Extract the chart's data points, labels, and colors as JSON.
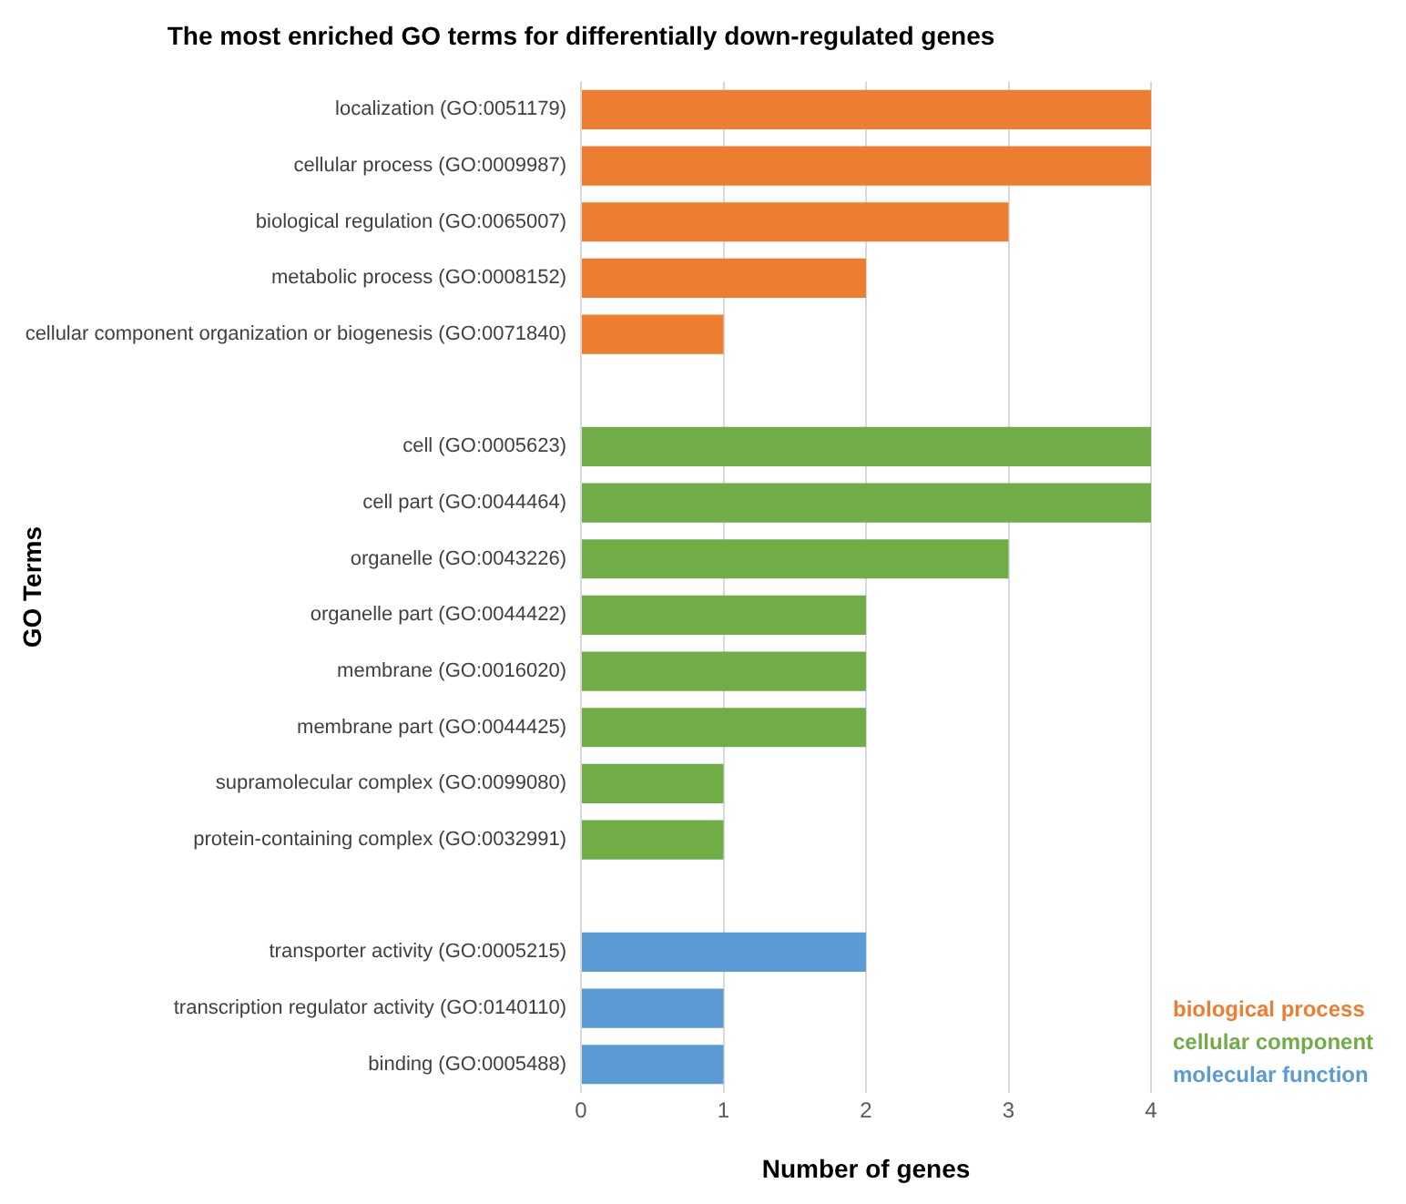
{
  "chart_data": {
    "type": "bar",
    "orientation": "horizontal",
    "title": "The most enriched GO terms for differentially down-regulated genes",
    "xlabel": "Number of genes",
    "ylabel": "GO Terms",
    "categories": [
      "localization (GO:0051179)",
      "cellular process (GO:0009987)",
      "biological regulation (GO:0065007)",
      "metabolic process (GO:0008152)",
      "cellular component organization or biogenesis (GO:0071840)",
      null,
      "cell (GO:0005623)",
      "cell part (GO:0044464)",
      "organelle (GO:0043226)",
      "organelle part (GO:0044422)",
      "membrane (GO:0016020)",
      "membrane part (GO:0044425)",
      "supramolecular complex (GO:0099080)",
      "protein-containing complex (GO:0032991)",
      null,
      "transporter activity (GO:0005215)",
      "transcription regulator activity (GO:0140110)",
      "binding (GO:0005488)"
    ],
    "series": [
      {
        "name": "biological process",
        "color": "#ed7d31",
        "values": [
          4,
          4,
          3,
          2,
          1,
          null,
          null,
          null,
          null,
          null,
          null,
          null,
          null,
          null,
          null,
          null,
          null,
          null
        ]
      },
      {
        "name": "cellular component",
        "color": "#70ad47",
        "values": [
          null,
          null,
          null,
          null,
          null,
          null,
          4,
          4,
          3,
          2,
          2,
          2,
          1,
          1,
          null,
          null,
          null,
          null
        ]
      },
      {
        "name": "molecular function",
        "color": "#5b9bd5",
        "values": [
          null,
          null,
          null,
          null,
          null,
          null,
          null,
          null,
          null,
          null,
          null,
          null,
          null,
          null,
          null,
          2,
          1,
          1
        ]
      }
    ],
    "xlim": [
      0,
      4
    ],
    "xticks": [
      0,
      1,
      2,
      3,
      4
    ],
    "grid": "x",
    "legend": "bottom right"
  }
}
